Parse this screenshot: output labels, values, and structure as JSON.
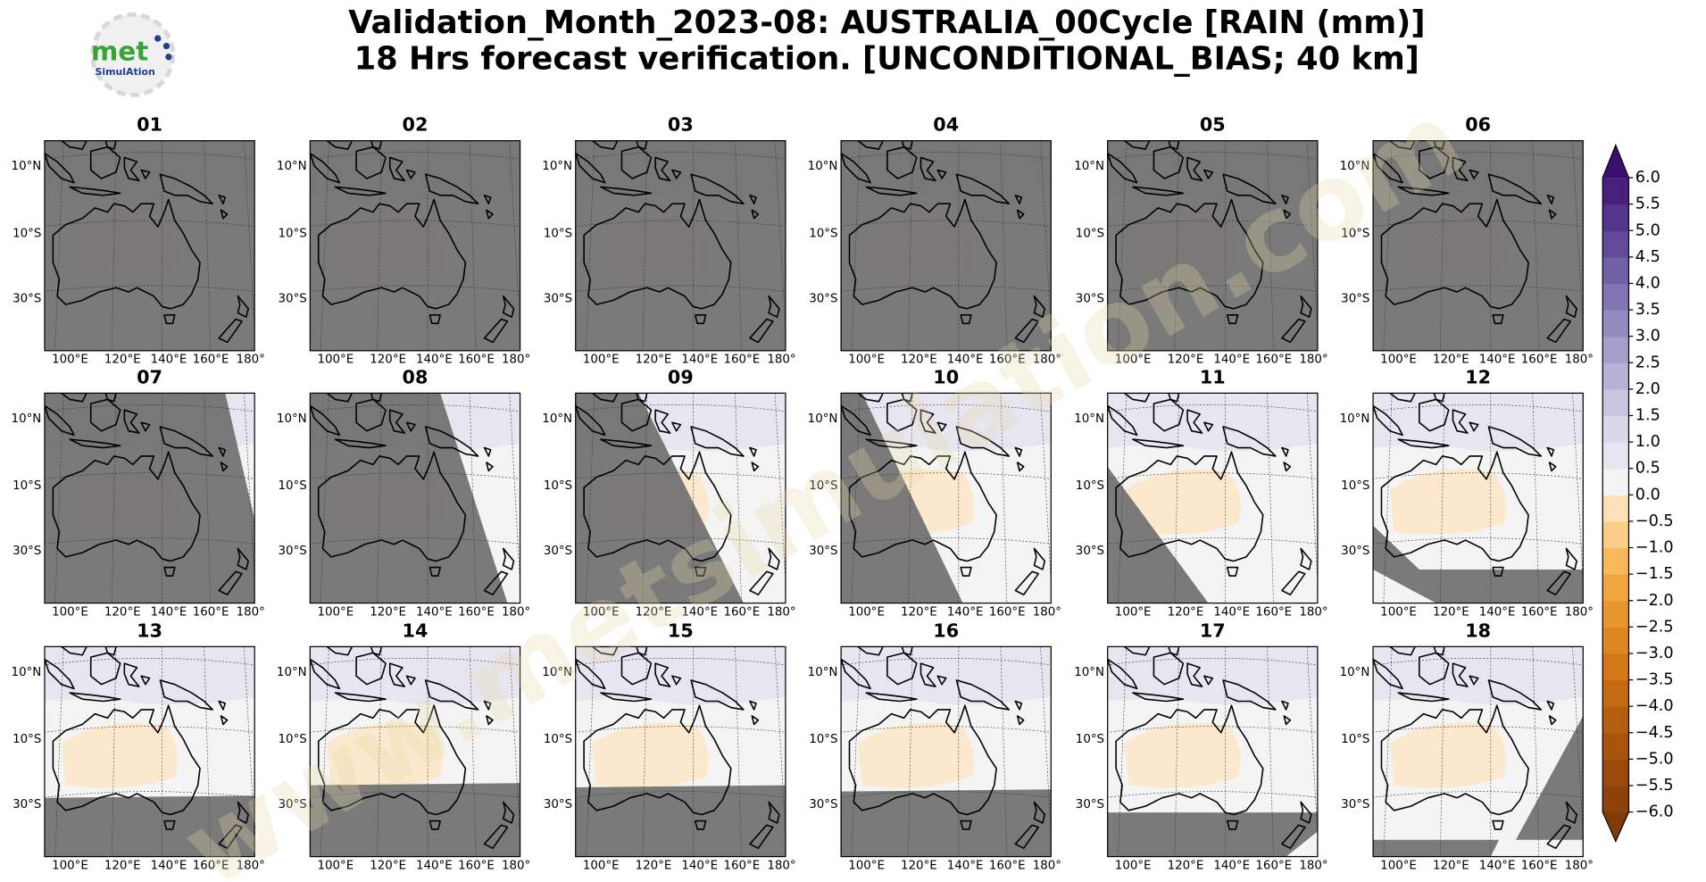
{
  "title": [
    "Validation_Month_2023-08: AUSTRALIA_00Cycle [RAIN (mm)]",
    "18 Hrs forecast verification. [UNCONDITIONAL_BIAS; 40 km]"
  ],
  "logo": {
    "main": "met",
    "sub": "SimulAtion"
  },
  "watermark": "www.metsimulation.com",
  "map": {
    "lat_labels": [
      "10°N",
      "10°S",
      "30°S"
    ],
    "lon_labels": [
      "100°E",
      "120°E",
      "140°E",
      "160°E",
      "180°"
    ]
  },
  "panels": [
    {
      "label": "01"
    },
    {
      "label": "02"
    },
    {
      "label": "03"
    },
    {
      "label": "04"
    },
    {
      "label": "05"
    },
    {
      "label": "06"
    },
    {
      "label": "07"
    },
    {
      "label": "08"
    },
    {
      "label": "09"
    },
    {
      "label": "10"
    },
    {
      "label": "11"
    },
    {
      "label": "12"
    },
    {
      "label": "13"
    },
    {
      "label": "14"
    },
    {
      "label": "15"
    },
    {
      "label": "16"
    },
    {
      "label": "17"
    },
    {
      "label": "18"
    }
  ],
  "colorbar": {
    "ticks": [
      {
        "value": -6.0,
        "label": "−6.0"
      },
      {
        "value": -5.5,
        "label": "−5.5"
      },
      {
        "value": -5.0,
        "label": "−5.0"
      },
      {
        "value": -4.5,
        "label": "−4.5"
      },
      {
        "value": -4.0,
        "label": "−4.0"
      },
      {
        "value": -3.5,
        "label": "−3.5"
      },
      {
        "value": -3.0,
        "label": "−3.0"
      },
      {
        "value": -2.5,
        "label": "−2.5"
      },
      {
        "value": -2.0,
        "label": "−2.0"
      },
      {
        "value": -1.5,
        "label": "−1.5"
      },
      {
        "value": -1.0,
        "label": "−1.0"
      },
      {
        "value": -0.5,
        "label": "−0.5"
      },
      {
        "value": 0.0,
        "label": "0.0"
      },
      {
        "value": 0.5,
        "label": "0.5"
      },
      {
        "value": 1.0,
        "label": "1.0"
      },
      {
        "value": 1.5,
        "label": "1.5"
      },
      {
        "value": 2.0,
        "label": "2.0"
      },
      {
        "value": 2.5,
        "label": "2.5"
      },
      {
        "value": 3.0,
        "label": "3.0"
      },
      {
        "value": 3.5,
        "label": "3.5"
      },
      {
        "value": 4.0,
        "label": "4.0"
      },
      {
        "value": 4.5,
        "label": "4.5"
      },
      {
        "value": 5.0,
        "label": "5.0"
      },
      {
        "value": 5.5,
        "label": "5.5"
      },
      {
        "value": 6.0,
        "label": "6.0"
      }
    ],
    "colors": [
      "#8c420a",
      "#9a4b0b",
      "#a8540c",
      "#b65e0f",
      "#c46a13",
      "#d27819",
      "#de8622",
      "#e8962e",
      "#f0a640",
      "#f6b85a",
      "#fbcd85",
      "#fde0b5",
      "#f4f4f4",
      "#e6e6f0",
      "#d8d8ea",
      "#c8c6e1",
      "#b7b3d6",
      "#a59fcb",
      "#938ac0",
      "#8275b3",
      "#7260a6",
      "#634a99",
      "#55348c",
      "#47207e"
    ],
    "extend_colors": [
      "#7f3b08",
      "#3b0f6f"
    ]
  }
}
